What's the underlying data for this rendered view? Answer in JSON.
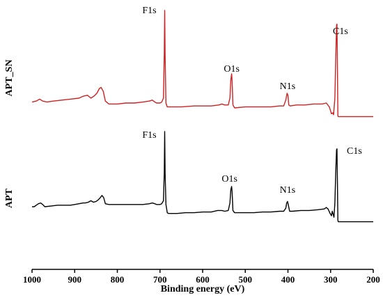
{
  "chart_data": {
    "type": "line",
    "xlabel": "Binding energy (eV)",
    "ylabel": "",
    "xlim": [
      1000,
      200
    ],
    "x_reversed": true,
    "xticks": [
      1000,
      900,
      800,
      700,
      600,
      500,
      400,
      300,
      200
    ],
    "yticks": [],
    "grid": false,
    "legend": "none",
    "series": [
      {
        "name": "APT_SN",
        "color": "#cc2222",
        "points": [
          [
            1000,
            0.06
          ],
          [
            990,
            0.07
          ],
          [
            982,
            0.09
          ],
          [
            975,
            0.07
          ],
          [
            965,
            0.06
          ],
          [
            950,
            0.07
          ],
          [
            930,
            0.08
          ],
          [
            910,
            0.09
          ],
          [
            890,
            0.1
          ],
          [
            880,
            0.12
          ],
          [
            870,
            0.13
          ],
          [
            862,
            0.1
          ],
          [
            855,
            0.12
          ],
          [
            848,
            0.15
          ],
          [
            842,
            0.2
          ],
          [
            838,
            0.21
          ],
          [
            833,
            0.17
          ],
          [
            828,
            0.07
          ],
          [
            820,
            0.04
          ],
          [
            800,
            0.04
          ],
          [
            780,
            0.05
          ],
          [
            760,
            0.05
          ],
          [
            740,
            0.06
          ],
          [
            725,
            0.07
          ],
          [
            718,
            0.08
          ],
          [
            712,
            0.06
          ],
          [
            708,
            0.05
          ],
          [
            700,
            0.05
          ],
          [
            696,
            0.06
          ],
          [
            692,
            0.1
          ],
          [
            690,
            0.55
          ],
          [
            689,
            1.0
          ],
          [
            688,
            0.55
          ],
          [
            686,
            0.05
          ],
          [
            683,
            0.01
          ],
          [
            670,
            0.01
          ],
          [
            650,
            0.01
          ],
          [
            620,
            0.02
          ],
          [
            600,
            0.02
          ],
          [
            580,
            0.02
          ],
          [
            562,
            0.03
          ],
          [
            555,
            0.04
          ],
          [
            548,
            0.03
          ],
          [
            540,
            0.03
          ],
          [
            536,
            0.1
          ],
          [
            534,
            0.28
          ],
          [
            532,
            0.35
          ],
          [
            531,
            0.28
          ],
          [
            529,
            0.03
          ],
          [
            525,
            0.0
          ],
          [
            500,
            0.01
          ],
          [
            480,
            0.01
          ],
          [
            460,
            0.01
          ],
          [
            440,
            0.01
          ],
          [
            420,
            0.02
          ],
          [
            410,
            0.02
          ],
          [
            405,
            0.08
          ],
          [
            402,
            0.15
          ],
          [
            400,
            0.13
          ],
          [
            398,
            0.03
          ],
          [
            395,
            0.02
          ],
          [
            380,
            0.03
          ],
          [
            360,
            0.03
          ],
          [
            340,
            0.04
          ],
          [
            320,
            0.04
          ],
          [
            310,
            0.05
          ],
          [
            303,
            0.01
          ],
          [
            298,
            -0.06
          ],
          [
            295,
            -0.05
          ],
          [
            293,
            -0.07
          ],
          [
            290,
            0.1
          ],
          [
            288,
            0.5
          ],
          [
            286,
            0.85
          ],
          [
            285,
            0.86
          ],
          [
            284,
            0.4
          ],
          [
            283,
            -0.08
          ],
          [
            282,
            -0.09
          ],
          [
            270,
            -0.09
          ],
          [
            250,
            -0.09
          ],
          [
            230,
            -0.09
          ],
          [
            210,
            -0.09
          ],
          [
            200,
            -0.09
          ]
        ]
      },
      {
        "name": "APT",
        "color": "#000000",
        "points": [
          [
            1000,
            0.0
          ],
          [
            995,
            0.0
          ],
          [
            990,
            0.02
          ],
          [
            985,
            0.04
          ],
          [
            980,
            0.05
          ],
          [
            975,
            0.03
          ],
          [
            970,
            0.0
          ],
          [
            955,
            0.01
          ],
          [
            940,
            0.02
          ],
          [
            925,
            0.02
          ],
          [
            910,
            0.02
          ],
          [
            900,
            0.03
          ],
          [
            890,
            0.04
          ],
          [
            880,
            0.05
          ],
          [
            875,
            0.05
          ],
          [
            868,
            0.06
          ],
          [
            862,
            0.08
          ],
          [
            856,
            0.06
          ],
          [
            850,
            0.07
          ],
          [
            845,
            0.09
          ],
          [
            840,
            0.12
          ],
          [
            836,
            0.15
          ],
          [
            832,
            0.12
          ],
          [
            828,
            0.04
          ],
          [
            820,
            0.03
          ],
          [
            800,
            0.03
          ],
          [
            780,
            0.03
          ],
          [
            760,
            0.03
          ],
          [
            740,
            0.03
          ],
          [
            725,
            0.04
          ],
          [
            718,
            0.05
          ],
          [
            712,
            0.04
          ],
          [
            708,
            0.03
          ],
          [
            700,
            0.03
          ],
          [
            696,
            0.04
          ],
          [
            692,
            0.08
          ],
          [
            690,
            0.45
          ],
          [
            689,
            1.0
          ],
          [
            688,
            0.45
          ],
          [
            686,
            0.03
          ],
          [
            683,
            -0.08
          ],
          [
            680,
            -0.09
          ],
          [
            660,
            -0.09
          ],
          [
            640,
            -0.08
          ],
          [
            620,
            -0.08
          ],
          [
            600,
            -0.07
          ],
          [
            580,
            -0.07
          ],
          [
            565,
            -0.05
          ],
          [
            560,
            -0.05
          ],
          [
            555,
            -0.05
          ],
          [
            548,
            -0.06
          ],
          [
            540,
            -0.05
          ],
          [
            536,
            0.05
          ],
          [
            534,
            0.22
          ],
          [
            532,
            0.27
          ],
          [
            531,
            0.2
          ],
          [
            529,
            -0.05
          ],
          [
            525,
            -0.08
          ],
          [
            500,
            -0.08
          ],
          [
            480,
            -0.08
          ],
          [
            460,
            -0.07
          ],
          [
            440,
            -0.07
          ],
          [
            420,
            -0.06
          ],
          [
            410,
            -0.06
          ],
          [
            405,
            -0.02
          ],
          [
            403,
            0.05
          ],
          [
            401,
            0.07
          ],
          [
            399,
            0.02
          ],
          [
            396,
            -0.06
          ],
          [
            390,
            -0.06
          ],
          [
            370,
            -0.05
          ],
          [
            350,
            -0.05
          ],
          [
            330,
            -0.04
          ],
          [
            315,
            -0.03
          ],
          [
            310,
            -0.01
          ],
          [
            306,
            -0.03
          ],
          [
            302,
            -0.08
          ],
          [
            298,
            -0.12
          ],
          [
            296,
            -0.06
          ],
          [
            294,
            -0.1
          ],
          [
            292,
            -0.14
          ],
          [
            290,
            0.05
          ],
          [
            288,
            0.45
          ],
          [
            286,
            0.76
          ],
          [
            285,
            0.77
          ],
          [
            284,
            0.3
          ],
          [
            283,
            -0.18
          ],
          [
            282,
            -0.2
          ],
          [
            270,
            -0.2
          ],
          [
            250,
            -0.2
          ],
          [
            230,
            -0.2
          ],
          [
            210,
            -0.2
          ],
          [
            200,
            -0.2
          ]
        ]
      }
    ],
    "annotations": [
      {
        "series": 0,
        "text": "F1s",
        "x": 689
      },
      {
        "series": 0,
        "text": "O1s",
        "x": 532
      },
      {
        "series": 0,
        "text": "N1s",
        "x": 401
      },
      {
        "series": 0,
        "text": "C1s",
        "x": 285
      },
      {
        "series": 1,
        "text": "F1s",
        "x": 689
      },
      {
        "series": 1,
        "text": "O1s",
        "x": 532
      },
      {
        "series": 1,
        "text": "N1s",
        "x": 401
      },
      {
        "series": 1,
        "text": "C1s",
        "x": 285
      }
    ]
  }
}
